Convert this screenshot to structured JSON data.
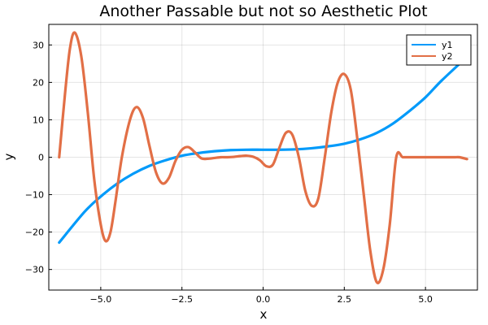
{
  "chart_data": {
    "type": "line",
    "title": "Another Passable but not so Aesthetic Plot",
    "xlabel": "x",
    "ylabel": "y",
    "xlim": [
      -6.6,
      6.6
    ],
    "ylim": [
      -35.5,
      35.5
    ],
    "x_ticks": [
      -5.0,
      -2.5,
      0.0,
      2.5,
      5.0
    ],
    "x_tick_labels": [
      "−5.0",
      "−2.5",
      "0.0",
      "2.5",
      "5.0"
    ],
    "y_ticks": [
      -30,
      -20,
      -10,
      0,
      10,
      20,
      30
    ],
    "y_tick_labels": [
      "−30",
      "−20",
      "−10",
      "0",
      "10",
      "20",
      "30"
    ],
    "grid": true,
    "legend_position": "top-right",
    "series": [
      {
        "name": "y1",
        "color": "#009AFA",
        "x": [
          -6.28,
          -5.5,
          -5.0,
          -4.5,
          -4.0,
          -3.5,
          -3.0,
          -2.5,
          -2.0,
          -1.5,
          -1.0,
          -0.5,
          0.0,
          0.5,
          1.0,
          1.5,
          2.0,
          2.5,
          3.0,
          3.5,
          4.0,
          4.5,
          5.0,
          5.5,
          6.28
        ],
        "y": [
          -22.8,
          -14.6,
          -10.5,
          -7.1,
          -4.4,
          -2.3,
          -0.8,
          0.4,
          1.1,
          1.6,
          1.9,
          2.0,
          2.0,
          2.0,
          2.1,
          2.4,
          2.9,
          3.6,
          4.8,
          6.5,
          9.0,
          12.3,
          16.0,
          20.5,
          26.8
        ]
      },
      {
        "name": "y2",
        "color": "#E26F46",
        "x": [
          -6.28,
          -6.1,
          -5.95,
          -5.8,
          -5.6,
          -5.4,
          -5.2,
          -5.0,
          -4.85,
          -4.7,
          -4.55,
          -4.35,
          -4.1,
          -3.9,
          -3.7,
          -3.5,
          -3.3,
          -3.1,
          -2.9,
          -2.7,
          -2.5,
          -2.3,
          -2.1,
          -1.9,
          -1.7,
          -1.5,
          -1.3,
          -1.1,
          -0.9,
          -0.7,
          -0.5,
          -0.3,
          -0.1,
          0.1,
          0.3,
          0.5,
          0.7,
          0.9,
          1.1,
          1.3,
          1.5,
          1.7,
          1.9,
          2.1,
          2.3,
          2.5,
          2.7,
          2.9,
          3.1,
          3.3,
          3.5,
          3.7,
          3.9,
          4.1,
          4.3,
          4.5,
          4.7,
          4.85,
          5.0,
          5.2,
          5.4,
          5.6,
          5.75,
          5.9,
          6.05,
          6.28
        ],
        "y": [
          0.0,
          17.0,
          29.0,
          33.3,
          27.0,
          12.0,
          -6.0,
          -18.0,
          -22.4,
          -20.0,
          -12.0,
          0.0,
          10.0,
          13.4,
          10.5,
          3.0,
          -4.0,
          -7.0,
          -5.5,
          -1.0,
          2.0,
          2.7,
          1.3,
          -0.3,
          -0.4,
          -0.2,
          0.0,
          0.0,
          0.1,
          0.3,
          0.4,
          0.1,
          -0.8,
          -2.4,
          -2.0,
          2.5,
          6.5,
          6.0,
          0.0,
          -9.0,
          -13.0,
          -11.0,
          0.0,
          12.0,
          20.0,
          22.2,
          18.0,
          5.0,
          -10.0,
          -25.0,
          -33.4,
          -30.0,
          -18.0,
          0.0,
          0.0,
          0.0,
          0.0,
          0.0,
          0.0,
          0.0,
          0.0,
          0.0,
          0.0,
          0.0,
          0.0,
          -0.5
        ]
      }
    ]
  }
}
